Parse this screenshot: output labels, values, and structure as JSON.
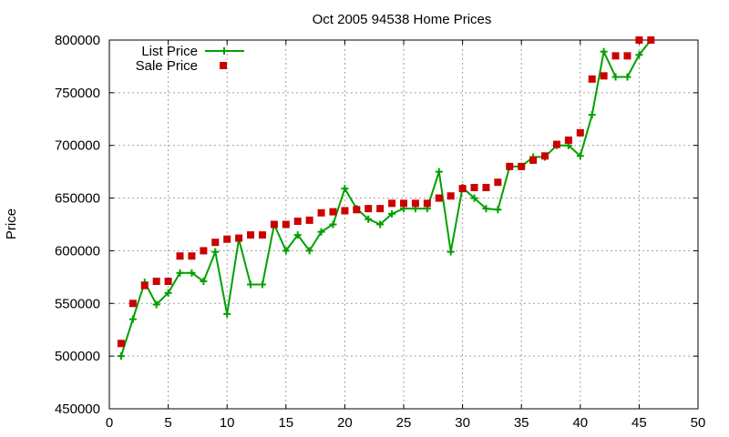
{
  "chart_data": {
    "type": "line",
    "title": "Oct 2005 94538 Home Prices",
    "xlabel": "",
    "ylabel": "Price",
    "xlim": [
      0,
      50
    ],
    "ylim": [
      450000,
      800000
    ],
    "xticks": [
      0,
      5,
      10,
      15,
      20,
      25,
      30,
      35,
      40,
      45,
      50
    ],
    "yticks": [
      450000,
      500000,
      550000,
      600000,
      650000,
      700000,
      750000,
      800000
    ],
    "grid": true,
    "legend_position": "top-left",
    "series": [
      {
        "name": "List Price",
        "style": "line-plus",
        "color": "#00a000",
        "x": [
          1,
          2,
          3,
          4,
          5,
          6,
          7,
          8,
          9,
          10,
          11,
          12,
          13,
          14,
          15,
          16,
          17,
          18,
          19,
          20,
          21,
          22,
          23,
          24,
          25,
          26,
          27,
          28,
          29,
          30,
          31,
          32,
          33,
          34,
          35,
          36,
          37,
          38,
          39,
          40,
          41,
          42,
          43,
          44,
          45,
          46
        ],
        "y": [
          500000,
          535000,
          570000,
          549000,
          560000,
          579000,
          579000,
          571000,
          599000,
          540000,
          611000,
          568000,
          568000,
          625000,
          600000,
          615000,
          600000,
          618000,
          625000,
          659000,
          640000,
          630000,
          625000,
          635000,
          640000,
          640000,
          640000,
          675000,
          599000,
          660000,
          650000,
          640000,
          639000,
          680000,
          680000,
          689000,
          689000,
          700000,
          700000,
          690000,
          729000,
          789000,
          765000,
          765000,
          786000,
          800000
        ]
      },
      {
        "name": "Sale Price",
        "style": "square",
        "color": "#cc0000",
        "x": [
          1,
          2,
          3,
          4,
          5,
          6,
          7,
          8,
          9,
          10,
          11,
          12,
          13,
          14,
          15,
          16,
          17,
          18,
          19,
          20,
          21,
          22,
          23,
          24,
          25,
          26,
          27,
          28,
          29,
          30,
          31,
          32,
          33,
          34,
          35,
          36,
          37,
          38,
          39,
          40,
          41,
          42,
          43,
          44,
          45,
          46
        ],
        "y": [
          512000,
          550000,
          567000,
          571000,
          571000,
          595000,
          595000,
          600000,
          608000,
          611000,
          612000,
          615000,
          615000,
          625000,
          625000,
          628000,
          629000,
          636000,
          637000,
          638000,
          639000,
          640000,
          640000,
          645000,
          645000,
          645000,
          645000,
          650000,
          652000,
          659000,
          660000,
          660000,
          665000,
          680000,
          680000,
          686000,
          690000,
          701000,
          705000,
          712000,
          763000,
          766000,
          785000,
          785000,
          800000,
          800000
        ]
      }
    ]
  }
}
